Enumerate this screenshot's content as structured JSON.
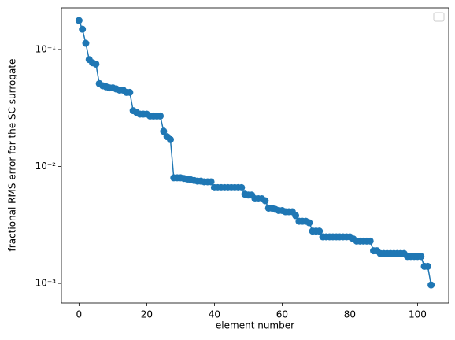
{
  "chart_data": {
    "type": "line",
    "log_y": true,
    "xlabel": "element number",
    "ylabel": "fractional RMS error for the SC surrogate",
    "x": [
      0,
      1,
      2,
      3,
      4,
      5,
      6,
      7,
      8,
      9,
      10,
      11,
      12,
      13,
      14,
      15,
      16,
      17,
      18,
      19,
      20,
      21,
      22,
      23,
      24,
      25,
      26,
      27,
      28,
      29,
      30,
      31,
      32,
      33,
      34,
      35,
      36,
      37,
      38,
      39,
      40,
      41,
      42,
      43,
      44,
      45,
      46,
      47,
      48,
      49,
      50,
      51,
      52,
      53,
      54,
      55,
      56,
      57,
      58,
      59,
      60,
      61,
      62,
      63,
      64,
      65,
      66,
      67,
      68,
      69,
      70,
      71,
      72,
      73,
      74,
      75,
      76,
      77,
      78,
      79,
      80,
      81,
      82,
      83,
      84,
      85,
      86,
      87,
      88,
      89,
      90,
      91,
      92,
      93,
      94,
      95,
      96,
      97,
      98,
      99,
      100,
      101,
      102,
      103,
      104
    ],
    "series": [
      {
        "color": "#1f77b4",
        "values": [
          0.177,
          0.149,
          0.113,
          0.082,
          0.077,
          0.075,
          0.051,
          0.049,
          0.048,
          0.047,
          0.047,
          0.046,
          0.045,
          0.045,
          0.043,
          0.043,
          0.03,
          0.029,
          0.028,
          0.028,
          0.028,
          0.027,
          0.027,
          0.027,
          0.027,
          0.02,
          0.018,
          0.017,
          0.008,
          0.008,
          0.008,
          0.0079,
          0.0078,
          0.0077,
          0.0076,
          0.0075,
          0.0075,
          0.0074,
          0.0074,
          0.0074,
          0.0066,
          0.0066,
          0.0066,
          0.0066,
          0.0066,
          0.0066,
          0.0066,
          0.0066,
          0.0066,
          0.0058,
          0.0057,
          0.0057,
          0.0053,
          0.0053,
          0.0053,
          0.0051,
          0.0044,
          0.0044,
          0.0043,
          0.0042,
          0.0042,
          0.0041,
          0.0041,
          0.0041,
          0.0038,
          0.0034,
          0.0034,
          0.0034,
          0.0033,
          0.0028,
          0.0028,
          0.0028,
          0.0025,
          0.0025,
          0.0025,
          0.0025,
          0.0025,
          0.0025,
          0.0025,
          0.0025,
          0.0025,
          0.0024,
          0.0023,
          0.0023,
          0.0023,
          0.0023,
          0.0023,
          0.0019,
          0.0019,
          0.0018,
          0.0018,
          0.0018,
          0.0018,
          0.0018,
          0.0018,
          0.0018,
          0.0018,
          0.0017,
          0.0017,
          0.0017,
          0.0017,
          0.0017,
          0.0014,
          0.0014,
          0.00097
        ]
      }
    ],
    "xlim": [
      -5.2,
      109.2
    ],
    "ylim": [
      0.00068,
      0.227
    ],
    "xticks": [
      0,
      20,
      40,
      60,
      80,
      100
    ],
    "yticks": [
      {
        "value": 0.001,
        "label": "10⁻³"
      },
      {
        "value": 0.01,
        "label": "10⁻²"
      },
      {
        "value": 0.1,
        "label": "10⁻¹"
      }
    ],
    "legend": "upper right"
  }
}
